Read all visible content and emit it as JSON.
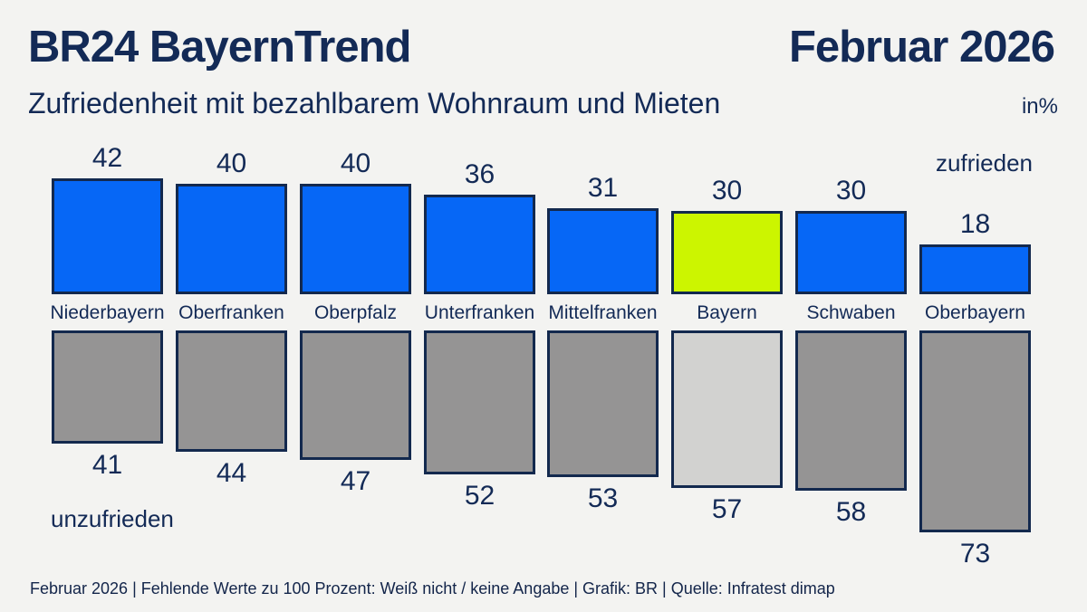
{
  "header": {
    "brand": "BR24 BayernTrend",
    "date": "Februar 2026",
    "subtitle": "Zufriedenheit mit bezahlbarem Wohnraum und Mieten",
    "unit": "in%"
  },
  "labels": {
    "satisfied": "zufrieden",
    "unsatisfied": "unzufrieden"
  },
  "chart_data": {
    "type": "bar",
    "categories": [
      "Niederbayern",
      "Oberfranken",
      "Oberpfalz",
      "Unterfranken",
      "Mittelfranken",
      "Bayern",
      "Schwaben",
      "Oberbayern"
    ],
    "series": [
      {
        "name": "zufrieden",
        "values": [
          42,
          40,
          40,
          36,
          31,
          30,
          30,
          18
        ]
      },
      {
        "name": "unzufrieden",
        "values": [
          41,
          44,
          47,
          52,
          53,
          57,
          58,
          73
        ]
      }
    ],
    "unit": "%",
    "highlight_category": "Bayern",
    "legend_position": {
      "zufrieden": "top-right",
      "unzufrieden": "bottom-left"
    },
    "grid": false,
    "colors": {
      "satisfied_bar": "#0667F6",
      "satisfied_bar_highlight": "#CCF500",
      "unsatisfied_bar": "#959494",
      "unsatisfied_bar_highlight": "#D2D2D0",
      "bar_border": "#13294E",
      "background": "#F3F3F1",
      "text": "#132A56"
    }
  },
  "footer": "Februar 2026 | Fehlende Werte zu 100 Prozent: Weiß nicht / keine Angabe | Grafik: BR | Quelle: Infratest dimap"
}
